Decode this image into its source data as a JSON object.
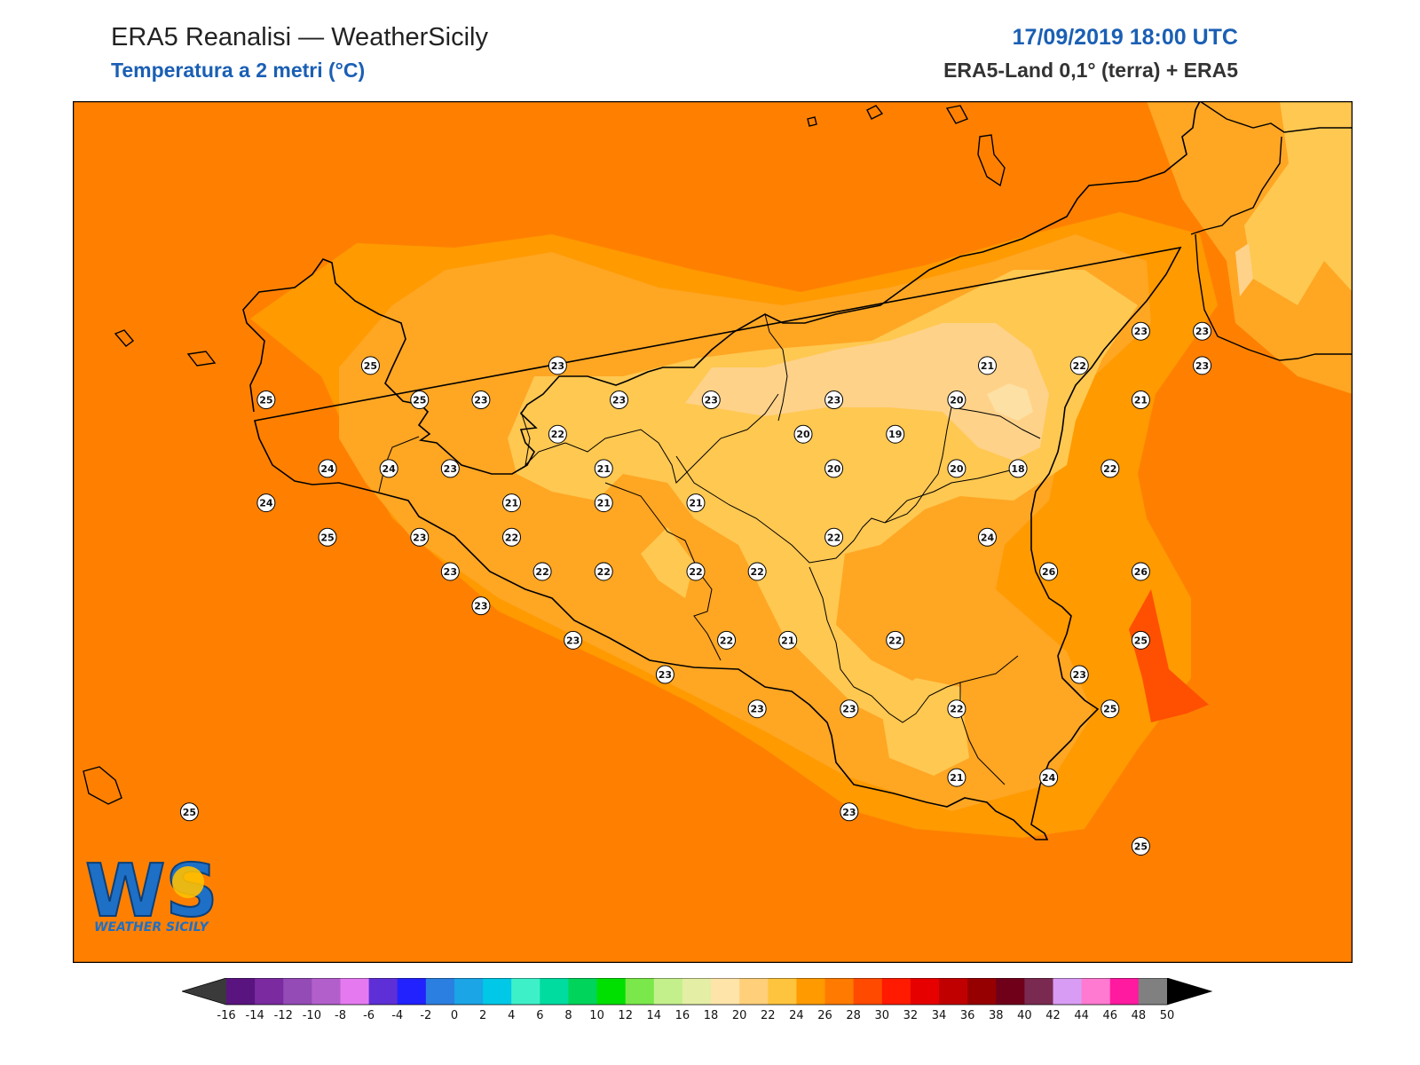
{
  "header": {
    "title": "ERA5 Reanalisi — WeatherSicily",
    "subtitle": "Temperatura a 2 metri (°C)",
    "datetime": "17/09/2019 18:00 UTC",
    "source": "ERA5-Land 0,1° (terra) + ERA5"
  },
  "logo": {
    "letters": "WS",
    "text": "WEATHER SICILY"
  },
  "colors": {
    "sea": "#ff8000",
    "band_24": "#ff9a00",
    "band_22": "#ffa623",
    "band_20": "#ffc851",
    "band_18": "#ffd28a",
    "band_16": "#fde0a3",
    "hot_28": "#ff4f00",
    "coast": "#000000"
  },
  "stations": [
    {
      "v": "25",
      "lon": 12.52,
      "lat": 38.06
    },
    {
      "v": "25",
      "lon": 12.18,
      "lat": 37.96
    },
    {
      "v": "25",
      "lon": 12.68,
      "lat": 37.96
    },
    {
      "v": "23",
      "lon": 12.88,
      "lat": 37.96
    },
    {
      "v": "23",
      "lon": 13.13,
      "lat": 38.06
    },
    {
      "v": "23",
      "lon": 13.33,
      "lat": 37.96
    },
    {
      "v": "23",
      "lon": 13.63,
      "lat": 37.96
    },
    {
      "v": "23",
      "lon": 14.03,
      "lat": 37.96
    },
    {
      "v": "21",
      "lon": 14.53,
      "lat": 38.06
    },
    {
      "v": "22",
      "lon": 14.83,
      "lat": 38.06
    },
    {
      "v": "23",
      "lon": 15.03,
      "lat": 38.16
    },
    {
      "v": "23",
      "lon": 15.23,
      "lat": 38.16
    },
    {
      "v": "23",
      "lon": 15.23,
      "lat": 38.06
    },
    {
      "v": "20",
      "lon": 14.43,
      "lat": 37.96
    },
    {
      "v": "21",
      "lon": 15.03,
      "lat": 37.96
    },
    {
      "v": "22",
      "lon": 13.13,
      "lat": 37.86
    },
    {
      "v": "20",
      "lon": 13.93,
      "lat": 37.86
    },
    {
      "v": "19",
      "lon": 14.23,
      "lat": 37.86
    },
    {
      "v": "24",
      "lon": 12.38,
      "lat": 37.76
    },
    {
      "v": "24",
      "lon": 12.58,
      "lat": 37.76
    },
    {
      "v": "23",
      "lon": 12.78,
      "lat": 37.76
    },
    {
      "v": "21",
      "lon": 13.28,
      "lat": 37.76
    },
    {
      "v": "20",
      "lon": 14.03,
      "lat": 37.76
    },
    {
      "v": "20",
      "lon": 14.43,
      "lat": 37.76
    },
    {
      "v": "18",
      "lon": 14.63,
      "lat": 37.76
    },
    {
      "v": "22",
      "lon": 14.93,
      "lat": 37.76
    },
    {
      "v": "24",
      "lon": 12.18,
      "lat": 37.66
    },
    {
      "v": "21",
      "lon": 12.98,
      "lat": 37.66
    },
    {
      "v": "21",
      "lon": 13.28,
      "lat": 37.66
    },
    {
      "v": "21",
      "lon": 13.58,
      "lat": 37.66
    },
    {
      "v": "25",
      "lon": 12.38,
      "lat": 37.56
    },
    {
      "v": "23",
      "lon": 12.68,
      "lat": 37.56
    },
    {
      "v": "22",
      "lon": 12.98,
      "lat": 37.56
    },
    {
      "v": "22",
      "lon": 14.03,
      "lat": 37.56
    },
    {
      "v": "24",
      "lon": 14.53,
      "lat": 37.56
    },
    {
      "v": "23",
      "lon": 12.78,
      "lat": 37.46
    },
    {
      "v": "22",
      "lon": 13.08,
      "lat": 37.46
    },
    {
      "v": "22",
      "lon": 13.28,
      "lat": 37.46
    },
    {
      "v": "22",
      "lon": 13.58,
      "lat": 37.46
    },
    {
      "v": "22",
      "lon": 13.78,
      "lat": 37.46
    },
    {
      "v": "26",
      "lon": 14.73,
      "lat": 37.46
    },
    {
      "v": "26",
      "lon": 15.03,
      "lat": 37.46
    },
    {
      "v": "23",
      "lon": 12.88,
      "lat": 37.36
    },
    {
      "v": "23",
      "lon": 13.18,
      "lat": 37.26
    },
    {
      "v": "22",
      "lon": 13.68,
      "lat": 37.26
    },
    {
      "v": "21",
      "lon": 13.88,
      "lat": 37.26
    },
    {
      "v": "22",
      "lon": 14.23,
      "lat": 37.26
    },
    {
      "v": "25",
      "lon": 15.03,
      "lat": 37.26
    },
    {
      "v": "23",
      "lon": 13.48,
      "lat": 37.16
    },
    {
      "v": "23",
      "lon": 14.83,
      "lat": 37.16
    },
    {
      "v": "23",
      "lon": 13.78,
      "lat": 37.06
    },
    {
      "v": "23",
      "lon": 14.08,
      "lat": 37.06
    },
    {
      "v": "22",
      "lon": 14.43,
      "lat": 37.06
    },
    {
      "v": "25",
      "lon": 14.93,
      "lat": 37.06
    },
    {
      "v": "21",
      "lon": 14.43,
      "lat": 36.86
    },
    {
      "v": "24",
      "lon": 14.73,
      "lat": 36.86
    },
    {
      "v": "23",
      "lon": 14.08,
      "lat": 36.76
    },
    {
      "v": "25",
      "lon": 15.03,
      "lat": 36.66
    },
    {
      "v": "25",
      "lon": 11.93,
      "lat": 36.76
    }
  ],
  "colorbar": {
    "ticks": [
      "-16",
      "-14",
      "-12",
      "-10",
      "-8",
      "-6",
      "-4",
      "-2",
      "0",
      "2",
      "4",
      "6",
      "8",
      "10",
      "12",
      "14",
      "16",
      "18",
      "20",
      "22",
      "24",
      "26",
      "28",
      "30",
      "32",
      "34",
      "36",
      "38",
      "40",
      "42",
      "44",
      "46",
      "48",
      "50"
    ],
    "min": -16,
    "max": 50,
    "step": 2,
    "colors": [
      "#3b0045",
      "#5a1480",
      "#7b2aa0",
      "#944bb6",
      "#b25fcc",
      "#e57af0",
      "#5e2fd6",
      "#2222ff",
      "#2b7fe0",
      "#1ba4e6",
      "#00c8e6",
      "#3ef0c8",
      "#00dca0",
      "#00d45a",
      "#00e000",
      "#7ae84a",
      "#c4f08c",
      "#e4eea4",
      "#ffe4aa",
      "#ffcf7a",
      "#ffc43d",
      "#ff9a00",
      "#ff7a00",
      "#ff4a00",
      "#ff1a00",
      "#e60000",
      "#c00000",
      "#960000",
      "#70001a",
      "#7a2a50",
      "#d89cf4",
      "#ff7ad0",
      "#ff1aa0",
      "#808080",
      "#404040"
    ]
  }
}
